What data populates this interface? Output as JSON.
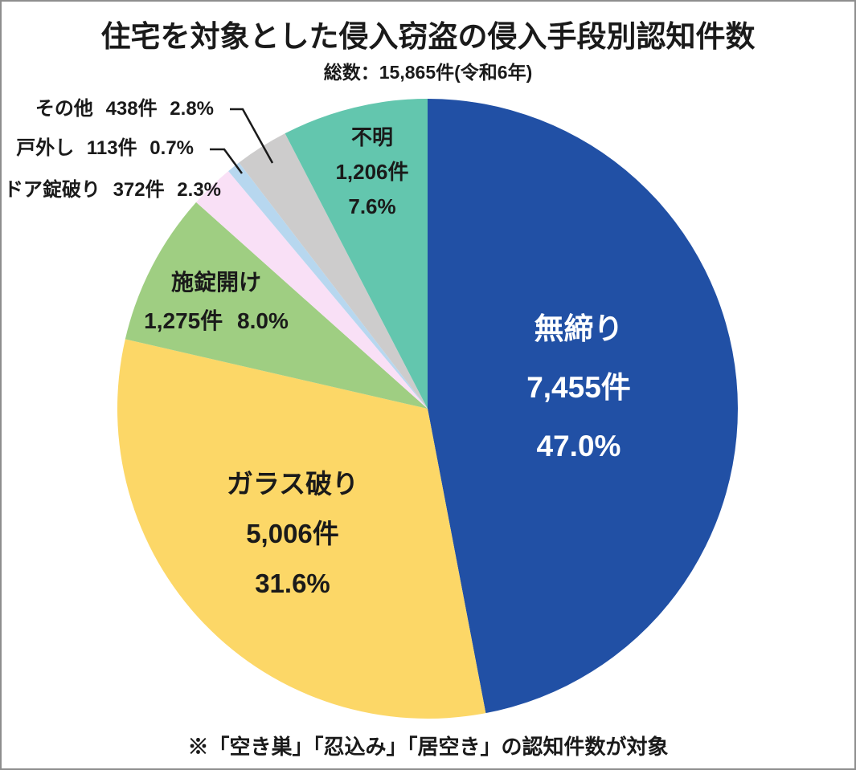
{
  "header": {
    "title": "住宅を対象とした侵入窃盗の侵入手段別認知件数",
    "subtitle": "総数：15,865件(令和6年)"
  },
  "footnote": "※「空き巣」「忍込み」「居空き」の認知件数が対象",
  "chart_data": {
    "type": "pie",
    "title": "住宅を対象とした侵入窃盗の侵入手段別認知件数",
    "total_label": "総数：15,865件(令和6年)",
    "total": 15865,
    "unit": "件",
    "year": "令和6年",
    "start_angle_deg": 0,
    "direction": "clockwise",
    "legend_position": "none",
    "slices": [
      {
        "name": "無締り",
        "value": 7455,
        "percent": 47.0,
        "count_label": "7,455件",
        "percent_label": "47.0%",
        "color": "#2150A5",
        "text_color": "#ffffff"
      },
      {
        "name": "ガラス破り",
        "value": 5006,
        "percent": 31.6,
        "count_label": "5,006件",
        "percent_label": "31.6%",
        "color": "#FCD767",
        "text_color": "#1a1a1a"
      },
      {
        "name": "施錠開け",
        "value": 1275,
        "percent": 8.0,
        "count_label": "1,275件",
        "percent_label": "8.0%",
        "color": "#9FCE82",
        "text_color": "#1a1a1a"
      },
      {
        "name": "ドア錠破り",
        "value": 372,
        "percent": 2.3,
        "count_label": "372件",
        "percent_label": "2.3%",
        "color": "#F9E0F6",
        "text_color": "#1a1a1a"
      },
      {
        "name": "戸外し",
        "value": 113,
        "percent": 0.7,
        "count_label": "113件",
        "percent_label": "0.7%",
        "color": "#B7D7EF",
        "text_color": "#1a1a1a"
      },
      {
        "name": "その他",
        "value": 438,
        "percent": 2.8,
        "count_label": "438件",
        "percent_label": "2.8%",
        "color": "#CDCCCC",
        "text_color": "#1a1a1a"
      },
      {
        "name": "不明",
        "value": 1206,
        "percent": 7.6,
        "count_label": "1,206件",
        "percent_label": "7.6%",
        "color": "#63C6AE",
        "text_color": "#1a1a1a"
      }
    ]
  }
}
